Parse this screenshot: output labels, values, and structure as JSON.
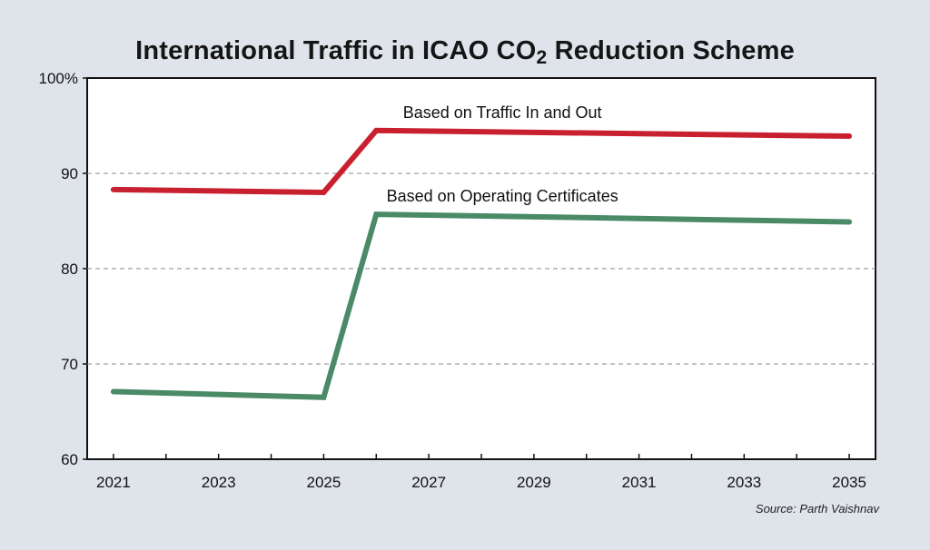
{
  "chart_data": {
    "type": "line",
    "title": {
      "main": "International Traffic in ICAO CO",
      "subscript": "2",
      "rest": " Reduction Scheme"
    },
    "x": [
      2021,
      2025,
      2026,
      2035
    ],
    "x_ticks": [
      "2021",
      "2023",
      "2025",
      "2027",
      "2029",
      "2031",
      "2033",
      "2035"
    ],
    "y_ticks": [
      "100%",
      "90",
      "80",
      "70",
      "60"
    ],
    "ylim": [
      60,
      100
    ],
    "xlim": [
      2020.5,
      2035.5
    ],
    "grid": "horizontal-dashed",
    "series": [
      {
        "name": "Based on Traffic In and Out",
        "color": "#c8202f",
        "values": [
          88.3,
          88.0,
          94.5,
          93.9
        ]
      },
      {
        "name": "Based on Operating Certificates",
        "color": "#4a8a67",
        "values": [
          67.1,
          66.5,
          85.7,
          84.9
        ]
      }
    ],
    "source": "Source: Parth Vaishnav"
  }
}
